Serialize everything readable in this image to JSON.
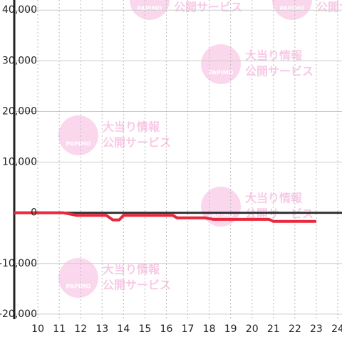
{
  "chart_data": {
    "type": "line",
    "x": [
      8.9,
      11.2,
      11.8,
      13.2,
      13.5,
      13.8,
      14.0,
      16.3,
      16.5,
      17.8,
      18.2,
      20.8,
      21.0,
      23.0
    ],
    "series": [
      {
        "color": "#e8283c",
        "values": [
          0,
          0,
          -500,
          -500,
          -1400,
          -1400,
          -500,
          -500,
          -1000,
          -1000,
          -1300,
          -1300,
          -1700,
          -1700
        ]
      }
    ],
    "xlim": [
      8.9,
      24.2
    ],
    "xticks": [
      10,
      11,
      12,
      13,
      14,
      15,
      16,
      17,
      18,
      19,
      20,
      21,
      22,
      23,
      24
    ],
    "ylim": [
      -21000,
      42000
    ],
    "yticks": [
      {
        "value": -20000,
        "label": "-20,000"
      },
      {
        "value": -10000,
        "label": "-10,000"
      },
      0,
      {
        "value": 10000,
        "label": "10,000"
      },
      {
        "value": 20000,
        "label": "20,000"
      },
      {
        "value": 30000,
        "label": "30,000"
      },
      {
        "value": 40000,
        "label": "40,000"
      }
    ],
    "grid": true
  },
  "watermark": {
    "logo": "PAPIMO",
    "line1": "大当り情報",
    "line2": "公開サービス"
  }
}
